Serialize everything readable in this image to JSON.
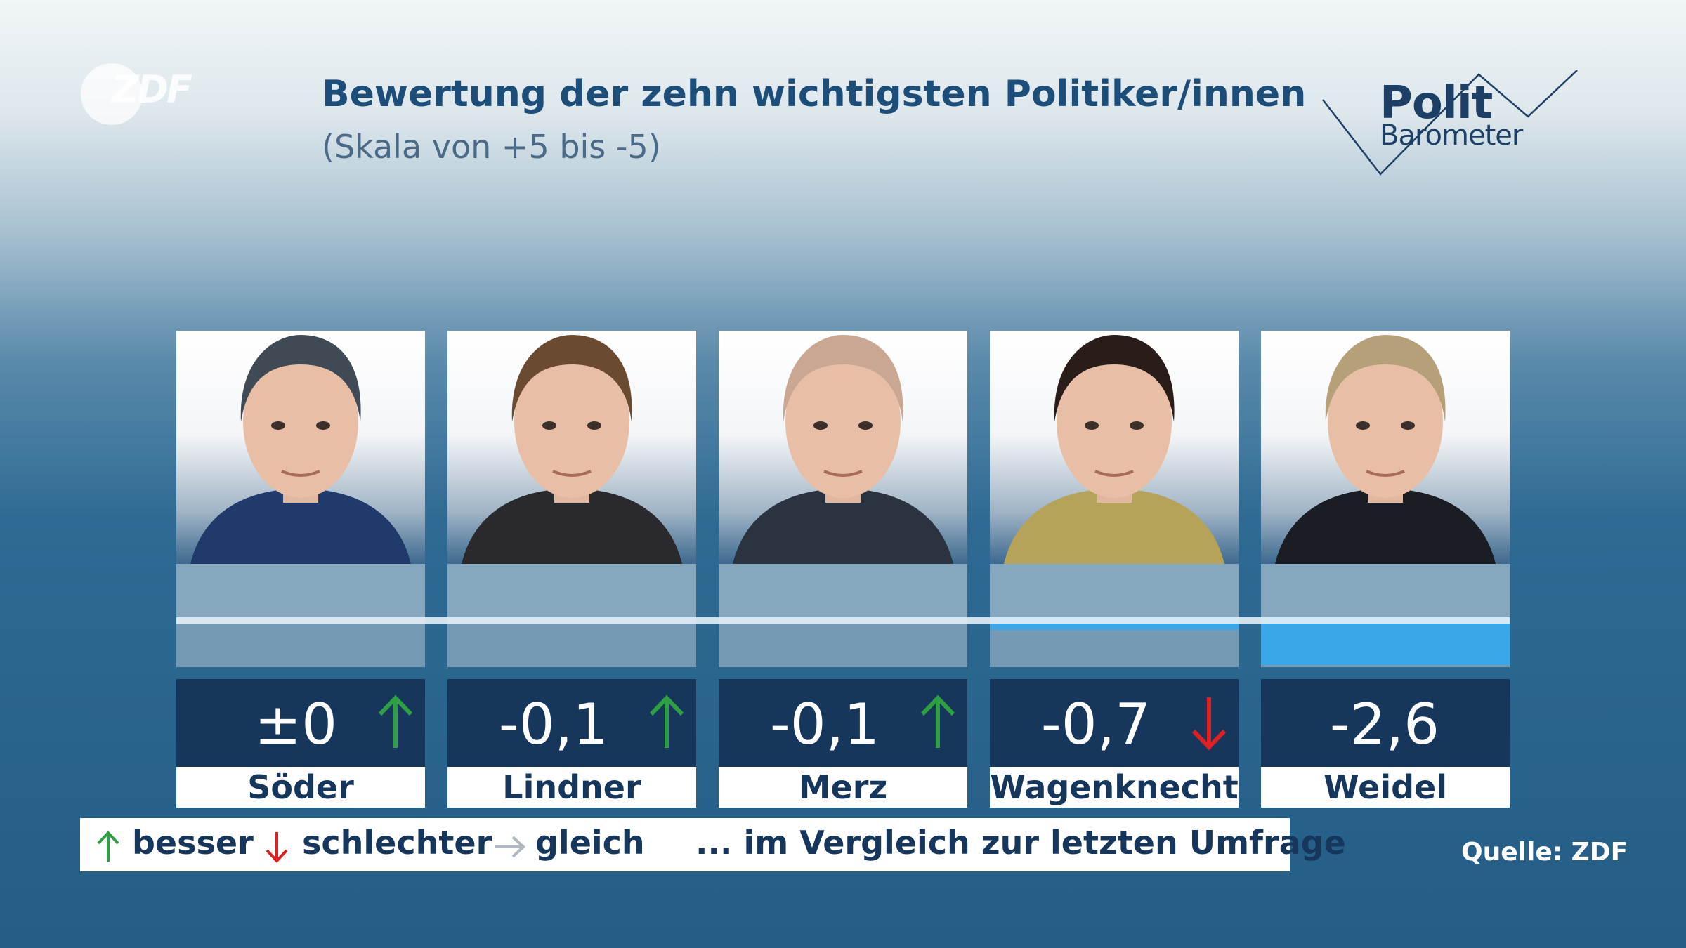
{
  "header": {
    "logo": "ZDF",
    "title": "Bewertung der zehn wichtigsten Politiker/innen",
    "subtitle": "(Skala von +5 bis -5)",
    "brand_line1": "Polit",
    "brand_line2": "Barometer"
  },
  "chart_data": {
    "type": "bar",
    "title": "Bewertung der zehn wichtigsten Politiker/innen",
    "subtitle": "(Skala von +5 bis -5)",
    "ylim": [
      -5,
      5
    ],
    "categories": [
      "Söder",
      "Lindner",
      "Merz",
      "Wagenknecht",
      "Weidel"
    ],
    "values": [
      0,
      -0.1,
      -0.1,
      -0.7,
      -2.6
    ],
    "labels": [
      "±0",
      "-0,1",
      "-0,1",
      "-0,7",
      "-2,6"
    ],
    "trend": [
      "up",
      "up",
      "up",
      "down",
      "none"
    ]
  },
  "colors": {
    "bar": "#3aa8e8",
    "up": "#2ea043",
    "down": "#e02020",
    "same": "#b0b8c0",
    "navy": "#17365c"
  },
  "legend": {
    "better": "besser",
    "worse": "schlechter",
    "same": "gleich",
    "note": "... im Vergleich zur letzten Umfrage"
  },
  "source": "Quelle: ZDF"
}
